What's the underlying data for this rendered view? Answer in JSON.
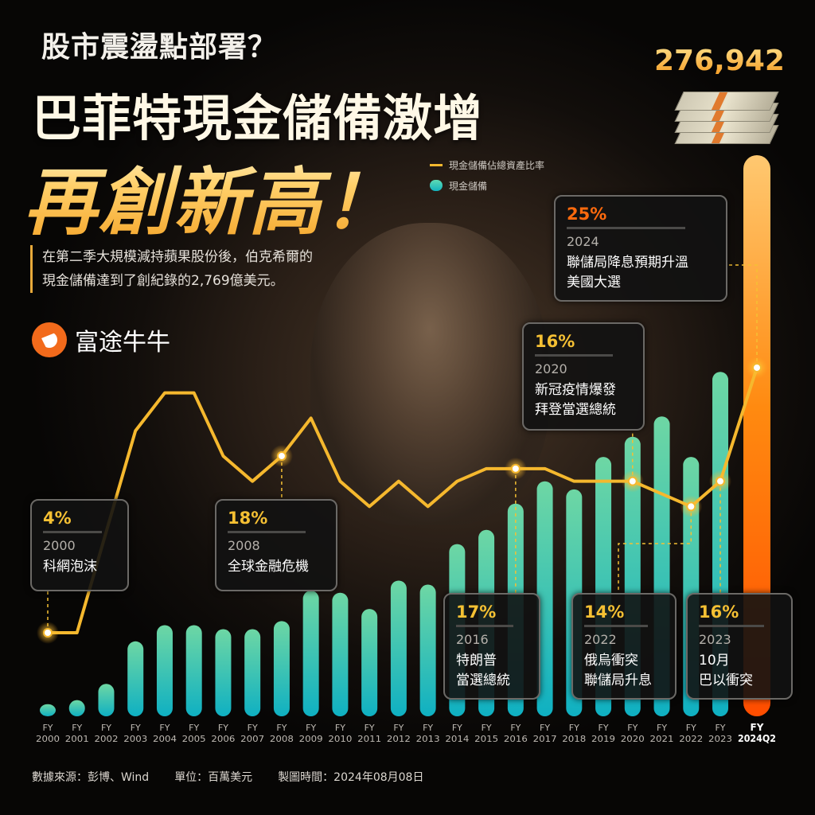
{
  "header": {
    "question": "股市震盪點部署？",
    "headline": "巴菲特現金儲備激增",
    "headline2": "再創新高！",
    "subtitle_line1": "在第二季大規模減持蘋果股份後，伯克希爾的",
    "subtitle_line2": "現金儲備達到了創紀錄的2,769億美元。"
  },
  "brand": {
    "name": "富途牛牛",
    "color": "#f26a1b"
  },
  "highlight_value": "276,942",
  "legend": [
    {
      "label": "現金儲備佔總資產比率",
      "icon": "line-swatch",
      "color": "#f5b82e"
    },
    {
      "label": "現金儲備",
      "icon": "bar-swatch",
      "color": "#2ec4b6"
    }
  ],
  "callouts": [
    {
      "pct": "4%",
      "year": "2000",
      "event": [
        "科網泡沫"
      ]
    },
    {
      "pct": "18%",
      "year": "2008",
      "event": [
        "全球金融危機"
      ]
    },
    {
      "pct": "17%",
      "year": "2016",
      "event": [
        "特朗普",
        "當選總統"
      ]
    },
    {
      "pct": "16%",
      "year": "2020",
      "event": [
        "新冠疫情爆發",
        "拜登當選總統"
      ]
    },
    {
      "pct": "14%",
      "year": "2022",
      "event": [
        "俄烏衝突",
        "聯儲局升息"
      ]
    },
    {
      "pct": "16%",
      "year": "2023",
      "event": [
        "10月",
        "巴以衝突"
      ]
    },
    {
      "pct": "25%",
      "year": "2024",
      "event": [
        "聯儲局降息預期升溫",
        "美國大選"
      ]
    }
  ],
  "footer": {
    "source": "數據來源：彭博、Wind",
    "unit": "單位：百萬美元",
    "date": "製圖時間：2024年08月08日"
  },
  "chart_data": {
    "type": "bar+line",
    "categories": [
      "2000",
      "2001",
      "2002",
      "2003",
      "2004",
      "2005",
      "2006",
      "2007",
      "2008",
      "2009",
      "2010",
      "2011",
      "2012",
      "2013",
      "2014",
      "2015",
      "2016",
      "2017",
      "2018",
      "2019",
      "2020",
      "2021",
      "2022",
      "2023",
      "2024Q2"
    ],
    "category_prefix": "FY",
    "series": [
      {
        "name": "現金儲備",
        "type": "bar",
        "unit": "百萬美元",
        "values": [
          6000,
          8000,
          16000,
          37000,
          45000,
          45000,
          43000,
          43000,
          47000,
          62000,
          61000,
          53000,
          67000,
          65000,
          85000,
          92000,
          105000,
          116000,
          112000,
          128000,
          138000,
          148000,
          128000,
          170000,
          276942
        ],
        "colors": {
          "bar_top": "#6ed7a4",
          "bar_bottom": "#0fb0c2",
          "highlight_top": "#ffc870",
          "highlight_bottom": "#ff4d00"
        }
      },
      {
        "name": "現金儲備佔總資產比率",
        "type": "line",
        "unit": "%",
        "values": [
          4,
          4,
          12,
          20,
          23,
          23,
          18,
          16,
          18,
          21,
          16,
          14,
          16,
          14,
          16,
          17,
          17,
          17,
          16,
          16,
          16,
          15,
          14,
          16,
          25
        ],
        "color": "#f5b82e"
      }
    ],
    "highlighted_points": [
      "2000",
      "2008",
      "2016",
      "2020",
      "2022",
      "2023",
      "2024Q2"
    ],
    "grid": false
  }
}
